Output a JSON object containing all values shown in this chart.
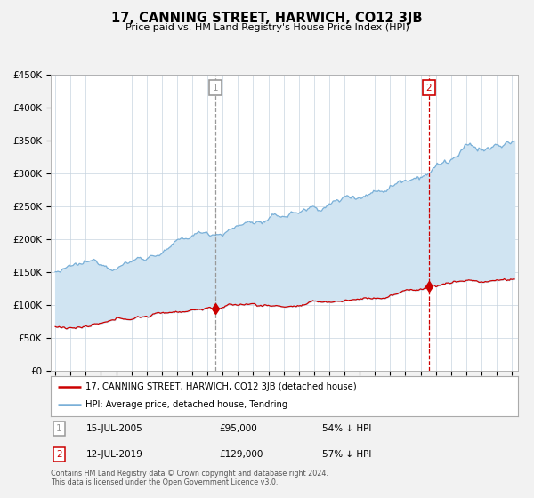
{
  "title": "17, CANNING STREET, HARWICH, CO12 3JB",
  "subtitle": "Price paid vs. HM Land Registry's House Price Index (HPI)",
  "ylim": [
    0,
    450000
  ],
  "yticks": [
    0,
    50000,
    100000,
    150000,
    200000,
    250000,
    300000,
    350000,
    400000,
    450000
  ],
  "xlim_start": 1994.7,
  "xlim_end": 2025.4,
  "fig_bg": "#f2f2f2",
  "plot_bg": "#ffffff",
  "hpi_color": "#7ab0d8",
  "hpi_fill": "#d0e4f2",
  "price_color": "#cc0000",
  "vline1_color": "#999999",
  "vline2_color": "#cc0000",
  "sale1_date": 2005.54,
  "sale1_price": 95000,
  "sale2_date": 2019.54,
  "sale2_price": 129000,
  "legend_line1": "17, CANNING STREET, HARWICH, CO12 3JB (detached house)",
  "legend_line2": "HPI: Average price, detached house, Tendring",
  "annotation1_date": "15-JUL-2005",
  "annotation1_price": "£95,000",
  "annotation1_hpi": "54% ↓ HPI",
  "annotation2_date": "12-JUL-2019",
  "annotation2_price": "£129,000",
  "annotation2_hpi": "57% ↓ HPI",
  "footer": "Contains HM Land Registry data © Crown copyright and database right 2024.\nThis data is licensed under the Open Government Licence v3.0."
}
